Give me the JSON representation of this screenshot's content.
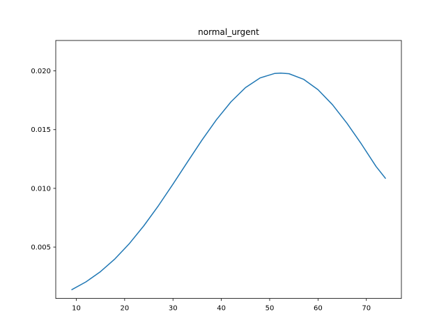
{
  "chart_data": {
    "type": "line",
    "title": "normal_urgent",
    "xlabel": "",
    "ylabel": "",
    "xlim": [
      5.75,
      77.25
    ],
    "ylim": [
      0.00063,
      0.02259
    ],
    "xticks": [
      10,
      20,
      30,
      40,
      50,
      60,
      70
    ],
    "xtick_labels": [
      "10",
      "20",
      "30",
      "40",
      "50",
      "60",
      "70"
    ],
    "yticks": [
      0.005,
      0.01,
      0.015,
      0.02
    ],
    "ytick_labels": [
      "0.005",
      "0.010",
      "0.015",
      "0.020"
    ],
    "grid": false,
    "legend": "none",
    "series": [
      {
        "color": "#1f77b4",
        "x": [
          9,
          12,
          15,
          18,
          21,
          24,
          27,
          30,
          33,
          36,
          39,
          42,
          45,
          48,
          51,
          52.3,
          54,
          57,
          60,
          63,
          66,
          69,
          72,
          74
        ],
        "y": [
          0.00136,
          0.00204,
          0.00291,
          0.004,
          0.00531,
          0.00683,
          0.00853,
          0.01036,
          0.01225,
          0.01411,
          0.01585,
          0.01737,
          0.01858,
          0.0194,
          0.01978,
          0.01981,
          0.01976,
          0.01929,
          0.0184,
          0.01712,
          0.01554,
          0.01376,
          0.01187,
          0.01083
        ]
      }
    ]
  }
}
